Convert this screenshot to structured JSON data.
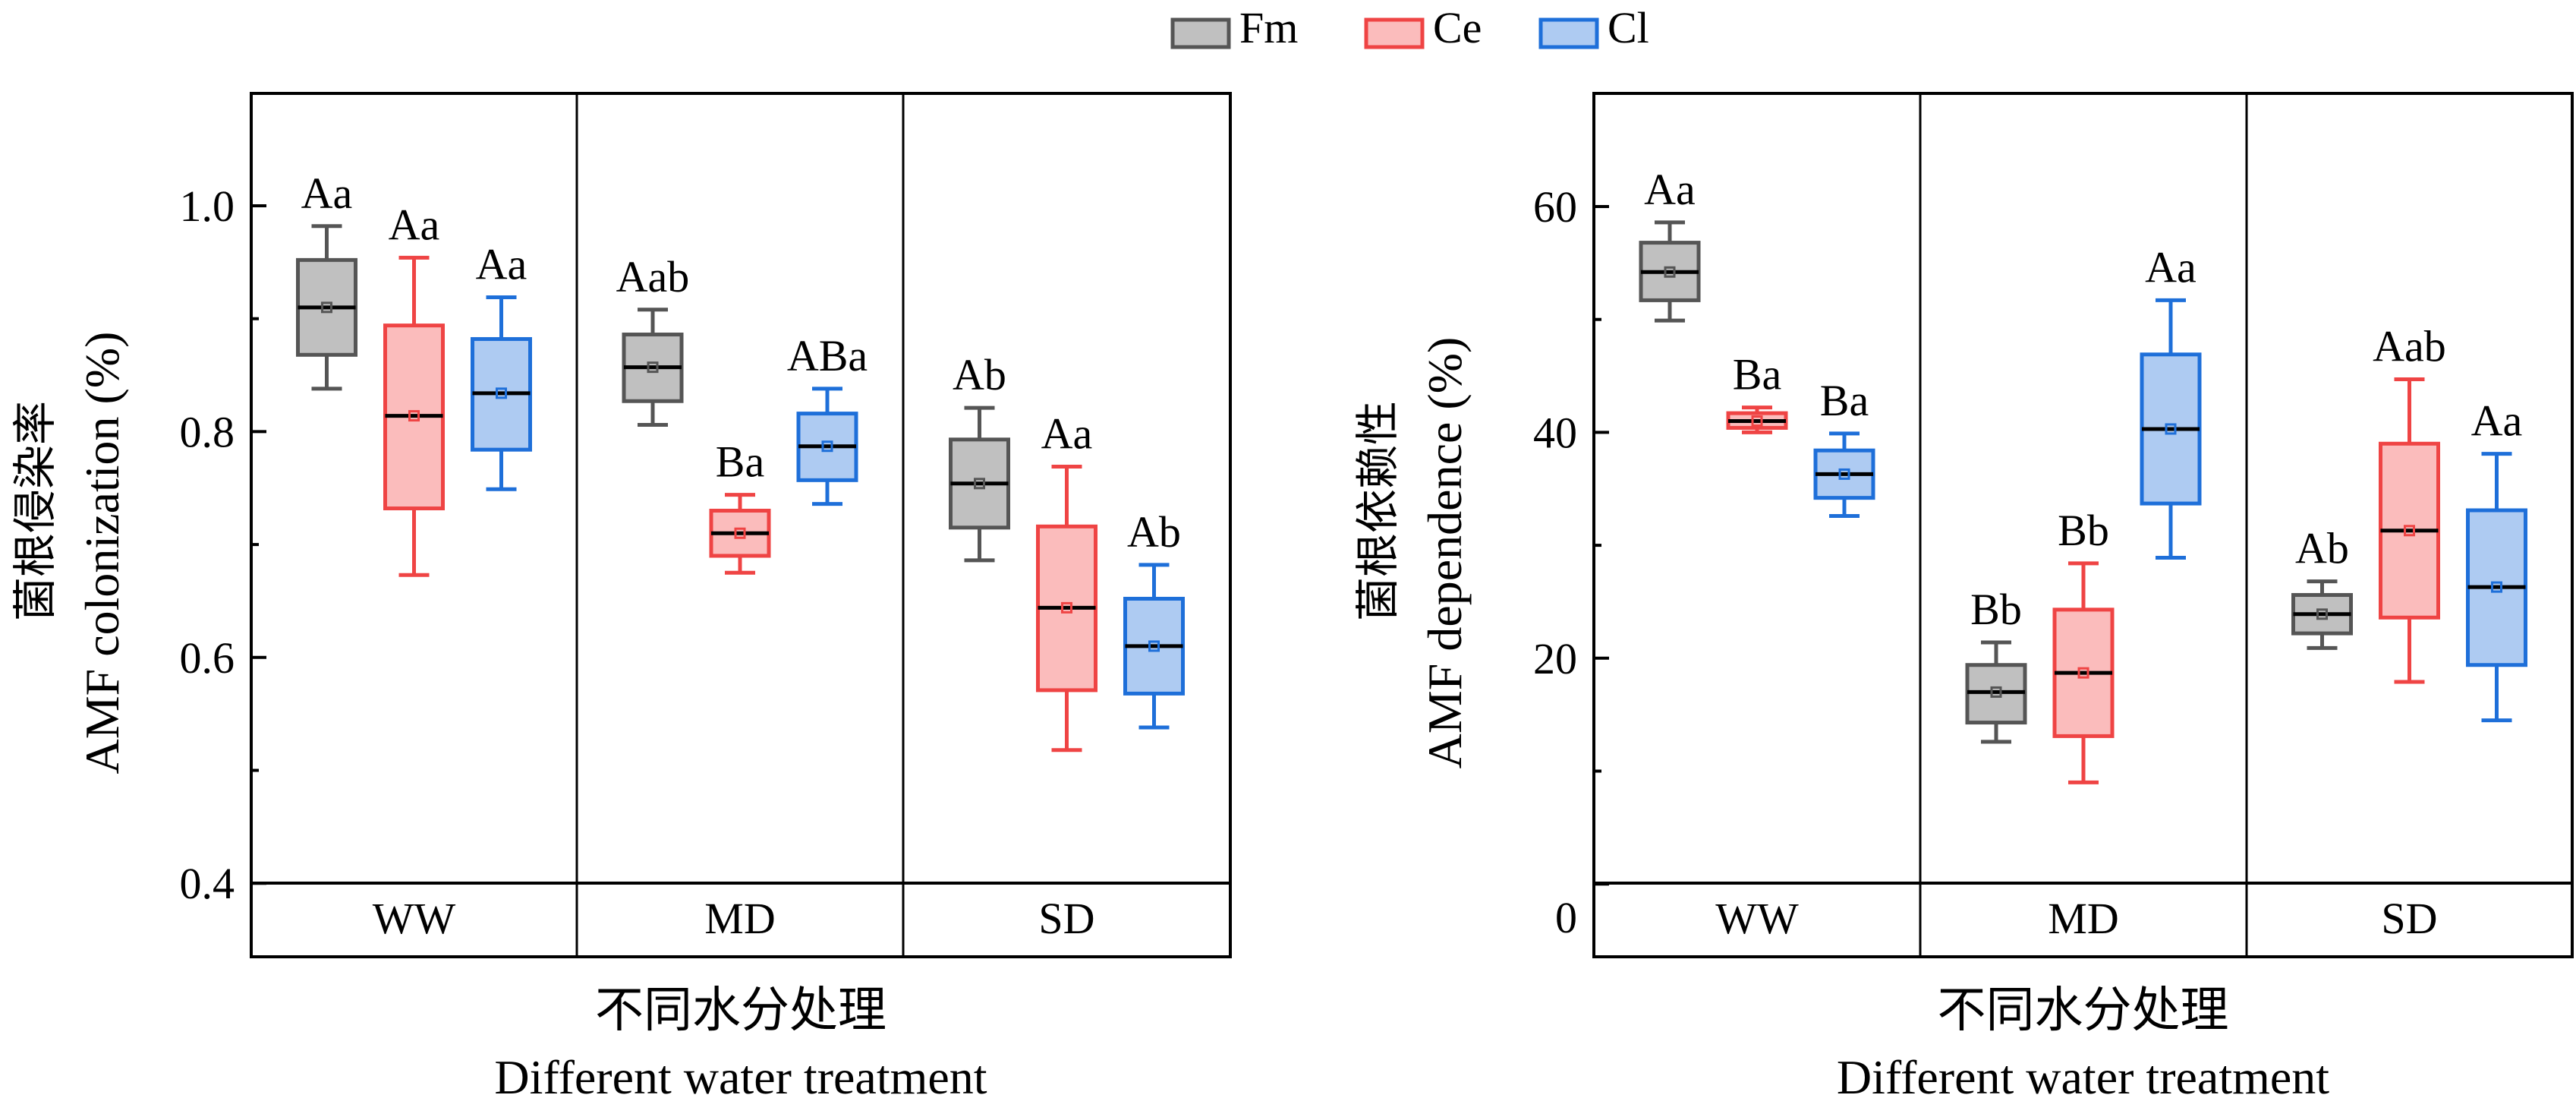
{
  "legend": {
    "items": [
      {
        "name": "Fm",
        "stroke": "#555555",
        "fill": "#c0c0c0"
      },
      {
        "name": "Ce",
        "stroke": "#ef4444",
        "fill": "#fbbcbc"
      },
      {
        "name": "Cl",
        "stroke": "#1e6fd9",
        "fill": "#aecbf2"
      }
    ]
  },
  "chart_data": [
    {
      "type": "box",
      "title": "",
      "ylabel_cn": "菌根侵染率",
      "ylabel": "AMF colonization (%)",
      "xlabel_cn": "不同水分处理",
      "xlabel": "Different water treatment",
      "ylim": [
        0.4,
        1.1
      ],
      "yticks": [
        "0.4",
        "0.6",
        "0.8",
        "1.0"
      ],
      "ytick_values": [
        0.4,
        0.6,
        0.8,
        1.0
      ],
      "minor_ticks": [
        0.5,
        0.7,
        0.9
      ],
      "categories": [
        "WW",
        "MD",
        "SD"
      ],
      "series": [
        {
          "name": "Fm",
          "boxes": [
            {
              "category": "WW",
              "min": 0.838,
              "q1": 0.868,
              "median": 0.91,
              "mean": 0.91,
              "q3": 0.952,
              "max": 0.982,
              "label": "Aa"
            },
            {
              "category": "MD",
              "min": 0.806,
              "q1": 0.827,
              "median": 0.857,
              "mean": 0.857,
              "q3": 0.886,
              "max": 0.908,
              "label": "Aab"
            },
            {
              "category": "SD",
              "min": 0.686,
              "q1": 0.715,
              "median": 0.754,
              "mean": 0.754,
              "q3": 0.793,
              "max": 0.821,
              "label": "Ab"
            }
          ]
        },
        {
          "name": "Ce",
          "boxes": [
            {
              "category": "WW",
              "min": 0.673,
              "q1": 0.732,
              "median": 0.814,
              "mean": 0.814,
              "q3": 0.894,
              "max": 0.954,
              "label": "Aa"
            },
            {
              "category": "MD",
              "min": 0.675,
              "q1": 0.69,
              "median": 0.71,
              "mean": 0.71,
              "q3": 0.73,
              "max": 0.744,
              "label": "Ba"
            },
            {
              "category": "SD",
              "min": 0.518,
              "q1": 0.571,
              "median": 0.644,
              "mean": 0.644,
              "q3": 0.716,
              "max": 0.769,
              "label": "Aa"
            }
          ]
        },
        {
          "name": "Cl",
          "boxes": [
            {
              "category": "WW",
              "min": 0.749,
              "q1": 0.784,
              "median": 0.834,
              "mean": 0.834,
              "q3": 0.882,
              "max": 0.919,
              "label": "Aa"
            },
            {
              "category": "MD",
              "min": 0.736,
              "q1": 0.757,
              "median": 0.787,
              "mean": 0.787,
              "q3": 0.816,
              "max": 0.838,
              "label": "ABa"
            },
            {
              "category": "SD",
              "min": 0.538,
              "q1": 0.568,
              "median": 0.61,
              "mean": 0.61,
              "q3": 0.652,
              "max": 0.682,
              "label": "Ab"
            }
          ]
        }
      ]
    },
    {
      "type": "box",
      "title": "",
      "ylabel_cn": "菌根依赖性",
      "ylabel": "AMF dependence (%)",
      "xlabel_cn": "不同水分处理",
      "xlabel": "Different water treatment",
      "ylim": [
        0,
        70
      ],
      "yticks": [
        "0",
        "20",
        "40",
        "60"
      ],
      "ytick_values": [
        0,
        20,
        40,
        60
      ],
      "minor_ticks": [
        10,
        30,
        50
      ],
      "categories": [
        "WW",
        "MD",
        "SD"
      ],
      "series": [
        {
          "name": "Fm",
          "boxes": [
            {
              "category": "WW",
              "min": 49.9,
              "q1": 51.7,
              "median": 54.2,
              "mean": 54.2,
              "q3": 56.8,
              "max": 58.6,
              "label": "Aa"
            },
            {
              "category": "MD",
              "min": 12.6,
              "q1": 14.3,
              "median": 17.0,
              "mean": 17.0,
              "q3": 19.4,
              "max": 21.4,
              "label": "Bb"
            },
            {
              "category": "SD",
              "min": 20.9,
              "q1": 22.2,
              "median": 23.9,
              "mean": 23.9,
              "q3": 25.6,
              "max": 26.8,
              "label": "Ab"
            }
          ]
        },
        {
          "name": "Ce",
          "boxes": [
            {
              "category": "WW",
              "min": 40.0,
              "q1": 40.4,
              "median": 41.0,
              "mean": 41.0,
              "q3": 41.7,
              "max": 42.2,
              "label": "Ba"
            },
            {
              "category": "MD",
              "min": 9.0,
              "q1": 13.1,
              "median": 18.7,
              "mean": 18.7,
              "q3": 24.3,
              "max": 28.4,
              "label": "Bb"
            },
            {
              "category": "SD",
              "min": 17.9,
              "q1": 23.6,
              "median": 31.3,
              "mean": 31.3,
              "q3": 39.0,
              "max": 44.7,
              "label": "Aab"
            }
          ]
        },
        {
          "name": "Cl",
          "boxes": [
            {
              "category": "WW",
              "min": 32.6,
              "q1": 34.2,
              "median": 36.3,
              "mean": 36.3,
              "q3": 38.4,
              "max": 39.9,
              "label": "Ba"
            },
            {
              "category": "MD",
              "min": 28.9,
              "q1": 33.7,
              "median": 40.3,
              "mean": 40.3,
              "q3": 46.9,
              "max": 51.7,
              "label": "Aa"
            },
            {
              "category": "SD",
              "min": 14.5,
              "q1": 19.4,
              "median": 26.3,
              "mean": 26.3,
              "q3": 33.1,
              "max": 38.1,
              "label": "Aa"
            }
          ]
        }
      ]
    }
  ]
}
